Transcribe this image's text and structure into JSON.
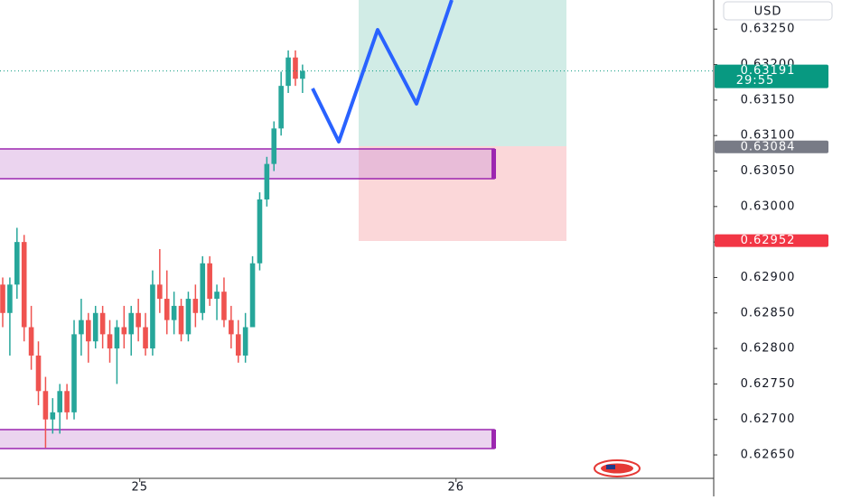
{
  "chart_data": {
    "type": "candlestick",
    "currency": "USD",
    "open": [
      0.6289,
      0.6285,
      0.6289,
      0.6295,
      0.6283,
      0.6279,
      0.6274,
      0.627,
      0.6271,
      0.6274,
      0.6271,
      0.6282,
      0.6284,
      0.6281,
      0.6285,
      0.6282,
      0.628,
      0.6283,
      0.6282,
      0.6285,
      0.6283,
      0.628,
      0.6289,
      0.6287,
      0.6284,
      0.6286,
      0.6282,
      0.6287,
      0.6285,
      0.6292,
      0.6287,
      0.6288,
      0.6284,
      0.6282,
      0.6279,
      0.6283,
      0.6292,
      0.6301,
      0.6306,
      0.6311,
      0.6317,
      0.6321,
      0.6318
    ],
    "high": [
      0.629,
      0.629,
      0.6297,
      0.6296,
      0.6286,
      0.6281,
      0.6276,
      0.6273,
      0.6275,
      0.6275,
      0.6284,
      0.6287,
      0.6285,
      0.6286,
      0.6286,
      0.6284,
      0.6284,
      0.6286,
      0.6286,
      0.6287,
      0.6285,
      0.6291,
      0.6294,
      0.6291,
      0.6288,
      0.6287,
      0.6288,
      0.6289,
      0.6293,
      0.6293,
      0.6289,
      0.629,
      0.6286,
      0.6284,
      0.6285,
      0.6293,
      0.6302,
      0.6307,
      0.6312,
      0.6319,
      0.6322,
      0.6322,
      0.632
    ],
    "low": [
      0.6283,
      0.6279,
      0.6287,
      0.6281,
      0.6277,
      0.6272,
      0.6266,
      0.6268,
      0.6268,
      0.627,
      0.627,
      0.6279,
      0.6278,
      0.628,
      0.628,
      0.6278,
      0.6275,
      0.628,
      0.6279,
      0.6281,
      0.6279,
      0.6279,
      0.6285,
      0.6282,
      0.6282,
      0.6281,
      0.6281,
      0.6283,
      0.6284,
      0.6286,
      0.6284,
      0.6283,
      0.628,
      0.6278,
      0.6278,
      0.6283,
      0.6291,
      0.63,
      0.6305,
      0.631,
      0.6316,
      0.6317,
      0.6316
    ],
    "close": [
      0.6285,
      0.6289,
      0.6295,
      0.6283,
      0.6279,
      0.6274,
      0.627,
      0.6271,
      0.6274,
      0.6271,
      0.6282,
      0.6284,
      0.6281,
      0.6285,
      0.6282,
      0.628,
      0.6283,
      0.6282,
      0.6285,
      0.6283,
      0.628,
      0.6289,
      0.6287,
      0.6284,
      0.6286,
      0.6282,
      0.6287,
      0.6285,
      0.6292,
      0.6287,
      0.6288,
      0.6284,
      0.6282,
      0.6279,
      0.6283,
      0.6292,
      0.6301,
      0.6306,
      0.6311,
      0.6317,
      0.6321,
      0.6318,
      0.63191
    ],
    "up_color": "#26a69a",
    "down_color": "#ef5350",
    "xlim": [
      -0.38,
      99.6
    ],
    "xticks": [
      {
        "value": 19.2,
        "label": "25"
      },
      {
        "value": 63.5,
        "label": "26"
      }
    ],
    "ylim": [
      0.62617,
      0.63291
    ],
    "yticks": [
      {
        "value": 0.6265,
        "label": "0.62650"
      },
      {
        "value": 0.627,
        "label": "0.62700"
      },
      {
        "value": 0.6275,
        "label": "0.62750"
      },
      {
        "value": 0.628,
        "label": "0.62800"
      },
      {
        "value": 0.6285,
        "label": "0.62850"
      },
      {
        "value": 0.629,
        "label": "0.62900"
      },
      {
        "value": 0.6295,
        "label": "0.62950"
      },
      {
        "value": 0.63,
        "label": "0.63000"
      },
      {
        "value": 0.6305,
        "label": "0.63050"
      },
      {
        "value": 0.631,
        "label": "0.63100"
      },
      {
        "value": 0.6315,
        "label": "0.63150"
      },
      {
        "value": 0.632,
        "label": "0.63200"
      },
      {
        "value": 0.6325,
        "label": "0.63250"
      }
    ],
    "price_labels": [
      {
        "value": 0.63191,
        "label": "0.63191",
        "countdown": "29:55",
        "color": "#089981"
      },
      {
        "value": 0.63084,
        "label": "0.63084",
        "color": "#787b86"
      },
      {
        "value": 0.62952,
        "label": "0.62952",
        "color": "#f23645"
      }
    ]
  }
}
